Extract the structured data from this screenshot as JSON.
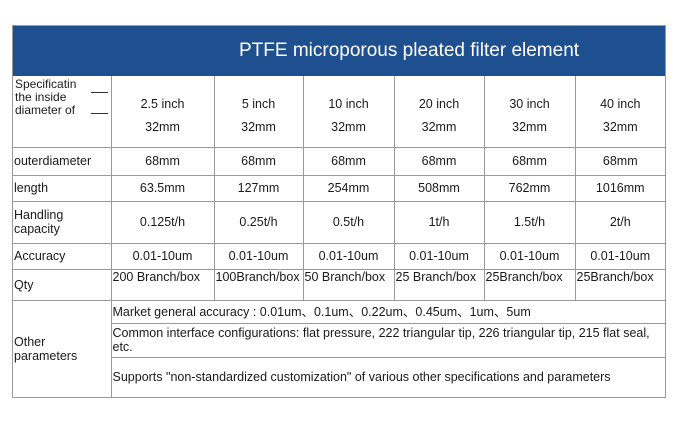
{
  "title": "PTFE microporous pleated filter element",
  "spec_row": {
    "label": "Specificatin the inside diameter of",
    "cells": [
      {
        "size": "2.5 inch",
        "diameter": "32mm"
      },
      {
        "size": "5 inch",
        "diameter": "32mm"
      },
      {
        "size": "10 inch",
        "diameter": "32mm"
      },
      {
        "size": "20 inch",
        "diameter": "32mm"
      },
      {
        "size": "30 inch",
        "diameter": "32mm"
      },
      {
        "size": "40 inch",
        "diameter": "32mm"
      }
    ]
  },
  "rows": [
    {
      "label": "outerdiameter",
      "values": [
        "68mm",
        "68mm",
        "68mm",
        "68mm",
        "68mm",
        "68mm"
      ]
    },
    {
      "label": "length",
      "values": [
        "63.5mm",
        "127mm",
        "254mm",
        "508mm",
        "762mm",
        "1016mm"
      ]
    },
    {
      "label": "Handling capacity",
      "values": [
        "0.125t/h",
        "0.25t/h",
        "0.5t/h",
        "1t/h",
        "1.5t/h",
        "2t/h"
      ]
    },
    {
      "label": "Accuracy",
      "values": [
        "0.01-10um",
        "0.01-10um",
        "0.01-10um",
        "0.01-10um",
        "0.01-10um",
        "0.01-10um"
      ]
    },
    {
      "label": "Qty",
      "values": [
        "200 Branch/box",
        "100Branch/box",
        "50 Branch/box",
        "25 Branch/box",
        "25Branch/box",
        "25Branch/box"
      ]
    }
  ],
  "other": {
    "label": "Other parameters",
    "lines": [
      "Market general accuracy : 0.01um、0.1um、0.22um、0.45um、1um、5um",
      "Common interface configurations: flat pressure, 222 triangular tip, 226 triangular tip, 215 flat seal, etc.",
      "Supports \"non-standardized customization\" of various other specifications and parameters"
    ]
  }
}
